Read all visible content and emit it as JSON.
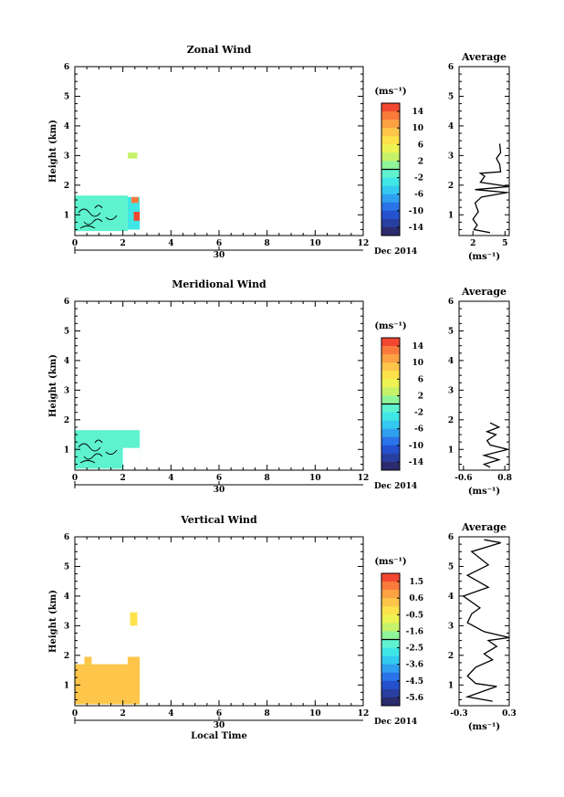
{
  "colorbar_colors": [
    "#2b2b6e",
    "#283fa0",
    "#2551cf",
    "#2a73e8",
    "#2fa0f0",
    "#33c9f0",
    "#3fe6e6",
    "#5ef2cf",
    "#8ff59a",
    "#c6f26a",
    "#ecf352",
    "#fde24a",
    "#fdc64a",
    "#fca243",
    "#fa7a3b",
    "#f24730"
  ],
  "shared": {
    "date_label": "Dec 2014",
    "day_label": "30",
    "unit_label": "(ms⁻¹)",
    "average_title": "Average",
    "xlabel_bottom": "Local Time"
  },
  "chart_data": [
    {
      "type": "heatmap",
      "title": "Zonal Wind",
      "xlabel": "",
      "ylabel": "Height (km)",
      "xlim": [
        0,
        12
      ],
      "ylim": [
        0.3,
        6
      ],
      "xticks": [
        0,
        2,
        4,
        6,
        8,
        10,
        12
      ],
      "yticks": [
        1,
        2,
        3,
        4,
        5,
        6
      ],
      "colorbar": {
        "unit": "(ms⁻¹)",
        "ticks": [
          "14",
          "10",
          "6",
          "2",
          "-2",
          "-6",
          "-10",
          "-14"
        ]
      },
      "regions": [
        {
          "x0": 0.0,
          "x1": 2.2,
          "y0": 0.45,
          "y1": 1.65,
          "color": "#5ef2cf"
        },
        {
          "x0": 2.2,
          "x1": 2.7,
          "y0": 0.5,
          "y1": 1.6,
          "color": "#3fe6e6"
        },
        {
          "x0": 2.35,
          "x1": 2.65,
          "y0": 1.4,
          "y1": 1.6,
          "color": "#fa7a3b"
        },
        {
          "x0": 2.45,
          "x1": 2.7,
          "y0": 0.8,
          "y1": 1.1,
          "color": "#f24730"
        },
        {
          "x0": 2.2,
          "x1": 2.6,
          "y0": 2.9,
          "y1": 3.1,
          "color": "#c6f26a"
        }
      ],
      "average": {
        "xlim": [
          0.7,
          5.4
        ],
        "xticks": [
          "2",
          "5"
        ],
        "xtick_values": [
          2,
          5
        ],
        "profile": [
          [
            3.6,
            0.4
          ],
          [
            2.1,
            0.5
          ],
          [
            2.4,
            0.65
          ],
          [
            2.0,
            0.85
          ],
          [
            2.5,
            1.1
          ],
          [
            2.2,
            1.4
          ],
          [
            2.8,
            1.6
          ],
          [
            5.2,
            1.75
          ],
          [
            2.2,
            1.85
          ],
          [
            5.4,
            1.95
          ],
          [
            2.7,
            2.1
          ],
          [
            3.1,
            2.3
          ],
          [
            2.7,
            2.4
          ],
          [
            4.6,
            2.45
          ],
          [
            4.5,
            2.7
          ],
          [
            4.2,
            2.9
          ],
          [
            4.6,
            3.1
          ],
          [
            4.5,
            3.4
          ]
        ]
      }
    },
    {
      "type": "heatmap",
      "title": "Meridional Wind",
      "xlabel": "",
      "ylabel": "Height (km)",
      "xlim": [
        0,
        12
      ],
      "ylim": [
        0.3,
        6
      ],
      "xticks": [
        0,
        2,
        4,
        6,
        8,
        10,
        12
      ],
      "yticks": [
        1,
        2,
        3,
        4,
        5,
        6
      ],
      "colorbar": {
        "unit": "(ms⁻¹)",
        "ticks": [
          "14",
          "10",
          "6",
          "2",
          "-2",
          "-6",
          "-10",
          "-14"
        ]
      },
      "regions": [
        {
          "x0": 0.0,
          "x1": 2.7,
          "y0": 0.35,
          "y1": 1.65,
          "color": "#5ef2cf"
        },
        {
          "x0": 2.0,
          "x1": 2.7,
          "y0": 0.35,
          "y1": 1.05,
          "color": "#ffffff"
        }
      ],
      "average": {
        "xlim": [
          -0.75,
          0.95
        ],
        "xticks": [
          "-0.6",
          "0.8"
        ],
        "xtick_values": [
          -0.6,
          0.8
        ],
        "profile": [
          [
            0.3,
            0.4
          ],
          [
            0.1,
            0.5
          ],
          [
            0.6,
            0.65
          ],
          [
            0.1,
            0.8
          ],
          [
            0.9,
            1.0
          ],
          [
            0.3,
            1.15
          ],
          [
            0.2,
            1.3
          ],
          [
            0.5,
            1.5
          ],
          [
            0.2,
            1.6
          ],
          [
            0.6,
            1.75
          ],
          [
            0.3,
            1.9
          ]
        ]
      }
    },
    {
      "type": "heatmap",
      "title": "Vertical Wind",
      "xlabel": "Local Time",
      "ylabel": "Height (km)",
      "xlim": [
        0,
        12
      ],
      "ylim": [
        0.3,
        6
      ],
      "xticks": [
        0,
        2,
        4,
        6,
        8,
        10,
        12
      ],
      "yticks": [
        1,
        2,
        3,
        4,
        5,
        6
      ],
      "colorbar": {
        "unit": "(ms⁻¹)",
        "ticks": [
          "1.5",
          "0.6",
          "-0.5",
          "-1.6",
          "-2.5",
          "-3.6",
          "-4.5",
          "-5.6"
        ]
      },
      "regions": [
        {
          "x0": 0.0,
          "x1": 2.7,
          "y0": 0.35,
          "y1": 1.7,
          "color": "#fdc64a"
        },
        {
          "x0": 0.4,
          "x1": 0.7,
          "y0": 1.7,
          "y1": 1.95,
          "color": "#fdc64a"
        },
        {
          "x0": 2.2,
          "x1": 2.7,
          "y0": 1.7,
          "y1": 1.95,
          "color": "#fdc64a"
        },
        {
          "x0": 2.3,
          "x1": 2.6,
          "y0": 3.0,
          "y1": 3.45,
          "color": "#fde24a"
        }
      ],
      "average": {
        "xlim": [
          -0.3,
          0.3
        ],
        "xticks": [
          "-0.3",
          "0.3"
        ],
        "xtick_values": [
          -0.3,
          0.3
        ],
        "profile": [
          [
            0.1,
            0.45
          ],
          [
            -0.2,
            0.6
          ],
          [
            0.15,
            0.95
          ],
          [
            -0.1,
            1.05
          ],
          [
            -0.2,
            1.3
          ],
          [
            -0.1,
            1.6
          ],
          [
            0.1,
            1.85
          ],
          [
            0.0,
            2.05
          ],
          [
            0.15,
            2.3
          ],
          [
            0.05,
            2.5
          ],
          [
            0.3,
            2.6
          ],
          [
            0.0,
            2.8
          ],
          [
            -0.2,
            3.1
          ],
          [
            -0.15,
            3.4
          ],
          [
            -0.05,
            3.6
          ],
          [
            -0.25,
            4.0
          ],
          [
            0.05,
            4.3
          ],
          [
            -0.2,
            4.7
          ],
          [
            0.05,
            5.05
          ],
          [
            -0.15,
            5.5
          ],
          [
            0.2,
            5.8
          ],
          [
            0.0,
            5.9
          ]
        ]
      }
    }
  ]
}
